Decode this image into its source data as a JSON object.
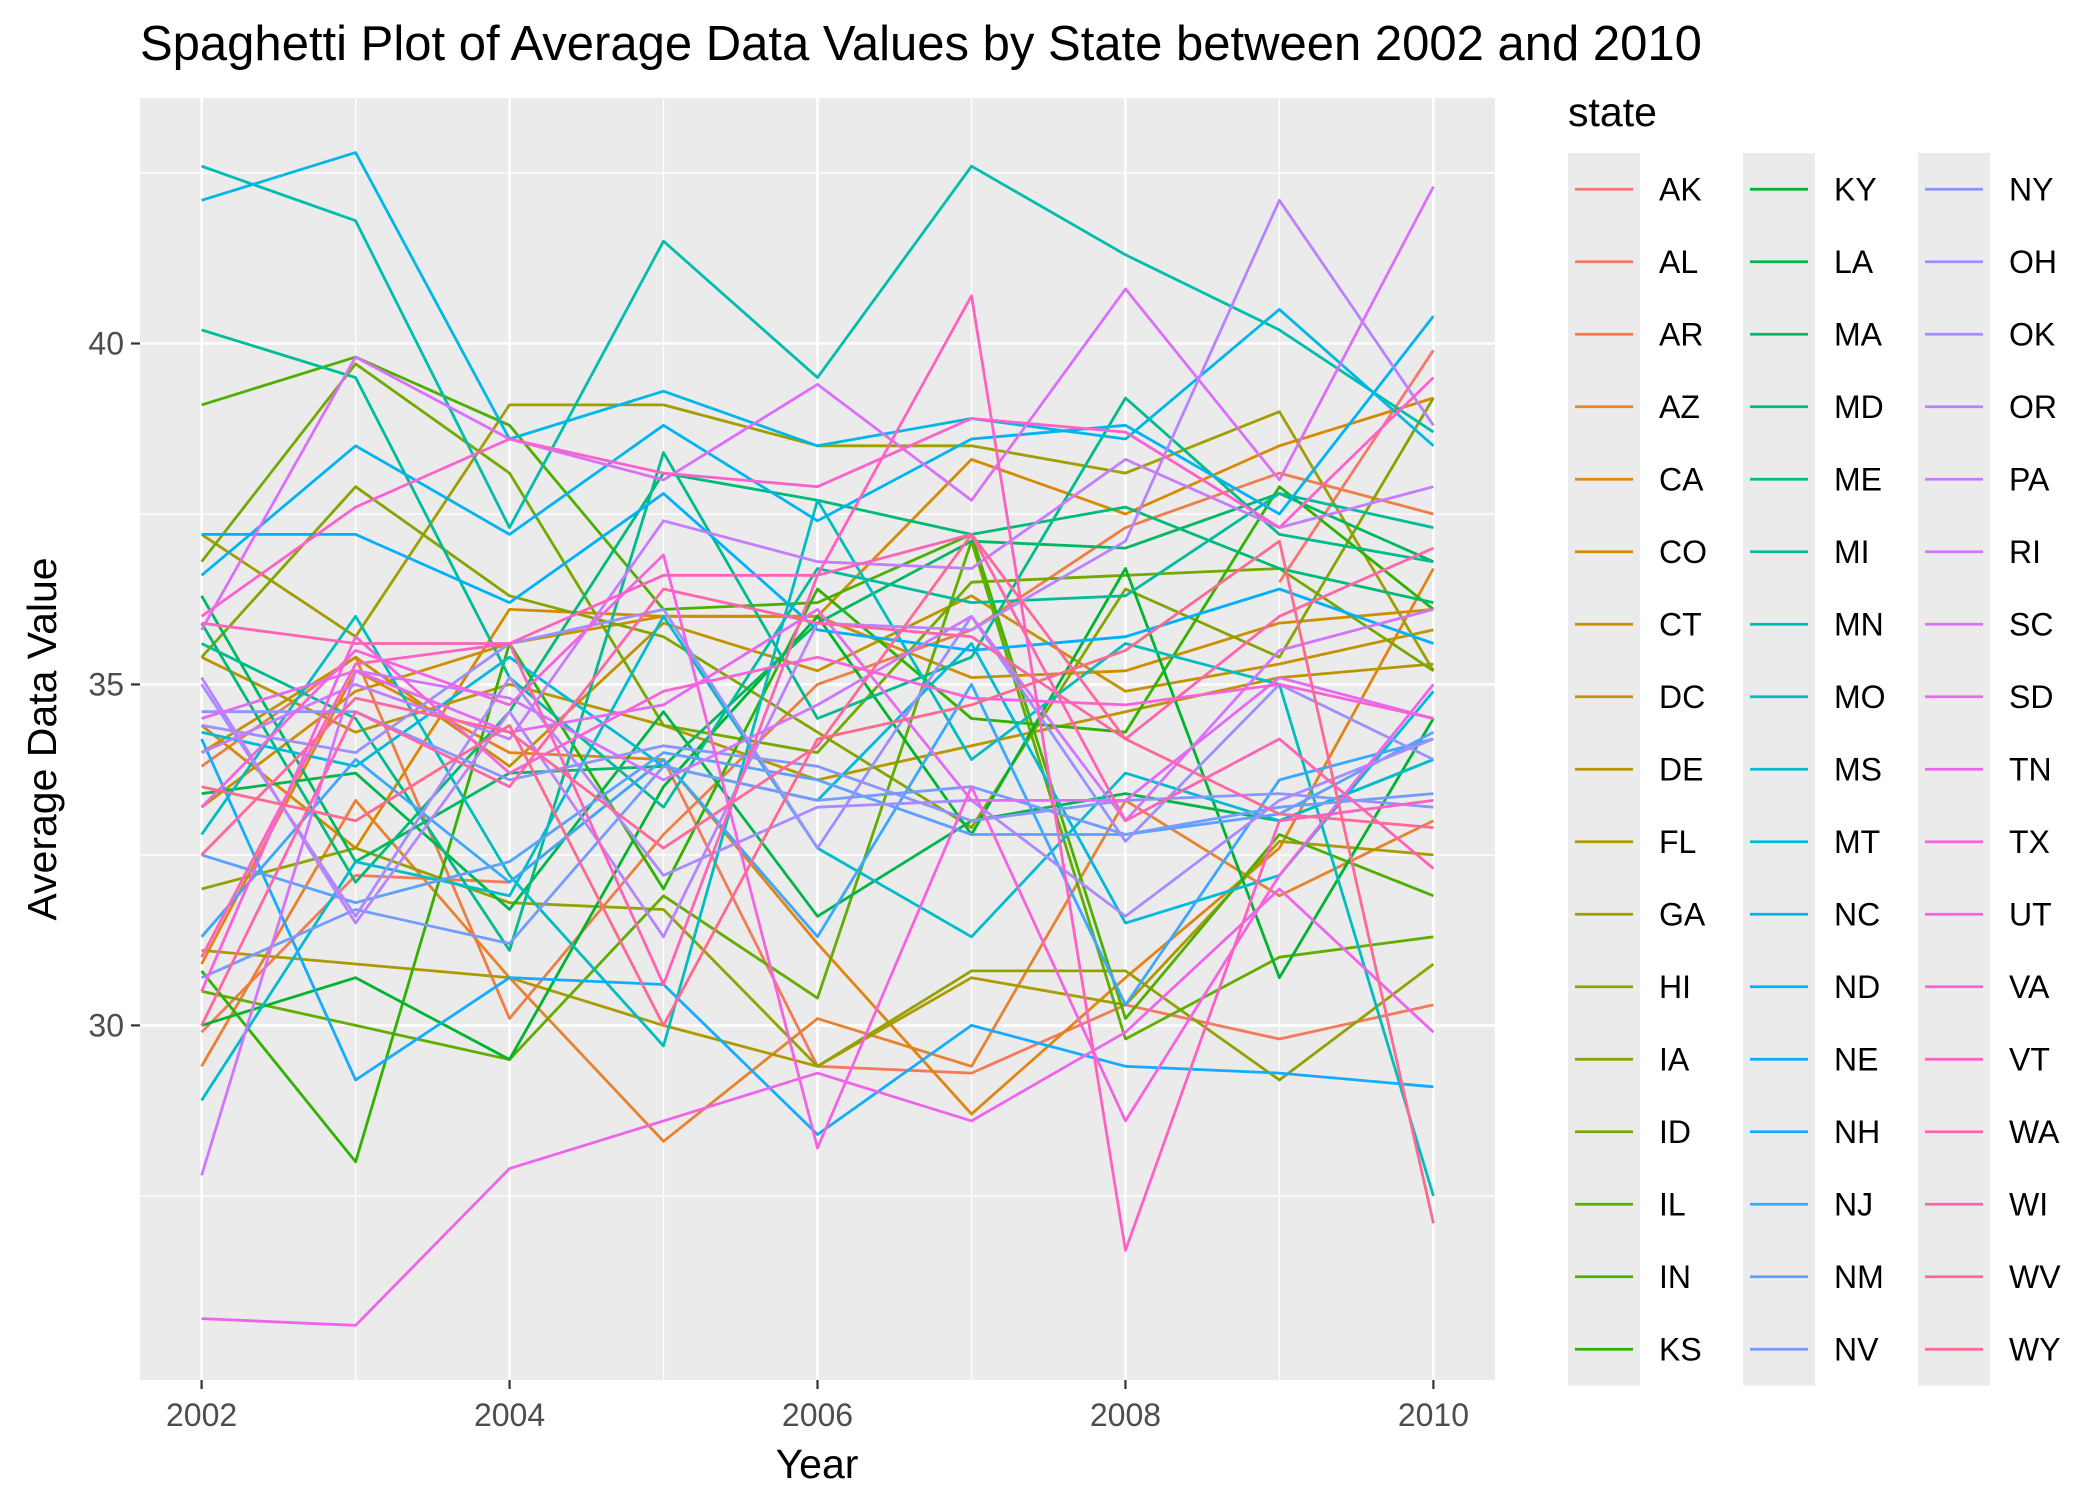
{
  "chart_data": {
    "type": "line",
    "title": "Spaghetti Plot of Average Data Values by State between 2002 and 2010",
    "xlabel": "Year",
    "ylabel": "Average Data Value",
    "x": [
      2002,
      2003,
      2004,
      2005,
      2006,
      2007,
      2008,
      2009,
      2010
    ],
    "xticks": [
      "2002",
      "2004",
      "2006",
      "2008",
      "2010"
    ],
    "yticks": [
      "30",
      "35",
      "40"
    ],
    "xlim": [
      2001.6,
      2010.4
    ],
    "ylim": [
      24.8,
      43.6
    ],
    "grid": true,
    "legend": {
      "title": "state",
      "position": "right",
      "columns": 3
    },
    "series": [
      {
        "name": "AK",
        "color": "#F8766D",
        "values": [
          null,
          null,
          null,
          null,
          null,
          null,
          null,
          36.5,
          39.9
        ]
      },
      {
        "name": "AL",
        "color": "#F47A5B",
        "values": [
          29.9,
          32.2,
          32.1,
          33.9,
          29.4,
          29.3,
          30.3,
          29.8,
          30.3
        ]
      },
      {
        "name": "AR",
        "color": "#EE7E48",
        "values": [
          33.8,
          35.4,
          30.1,
          32.8,
          35.0,
          35.8,
          37.3,
          38.1,
          37.5
        ]
      },
      {
        "name": "AZ",
        "color": "#E7822F",
        "values": [
          29.4,
          33.3,
          30.7,
          28.3,
          30.1,
          29.4,
          33.3,
          31.9,
          33.0
        ]
      },
      {
        "name": "CA",
        "color": "#E08513",
        "values": [
          30.9,
          35.2,
          34.0,
          33.9,
          31.2,
          28.7,
          30.7,
          32.6,
          36.7
        ]
      },
      {
        "name": "CO",
        "color": "#D78A00",
        "values": [
          34.4,
          32.6,
          36.1,
          36.0,
          36.0,
          38.3,
          37.5,
          38.5,
          39.2
        ]
      },
      {
        "name": "CT",
        "color": "#CE8E00",
        "values": [
          33.2,
          34.9,
          35.6,
          36.0,
          36.0,
          35.1,
          35.2,
          35.9,
          36.1
        ]
      },
      {
        "name": "DC",
        "color": "#C49200",
        "values": [
          34.0,
          35.4,
          33.8,
          35.9,
          35.2,
          36.3,
          34.9,
          35.3,
          35.8
        ]
      },
      {
        "name": "DE",
        "color": "#B99600",
        "values": [
          35.4,
          34.3,
          35.0,
          34.4,
          33.6,
          34.1,
          34.6,
          35.1,
          35.3
        ]
      },
      {
        "name": "FL",
        "color": "#AD9A00",
        "values": [
          31.1,
          30.9,
          30.7,
          30.0,
          29.4,
          30.7,
          30.3,
          32.7,
          32.5
        ]
      },
      {
        "name": "GA",
        "color": "#A19E00",
        "values": [
          37.2,
          35.7,
          39.1,
          39.1,
          38.5,
          38.5,
          38.1,
          39.0,
          35.2
        ]
      },
      {
        "name": "HI",
        "color": "#93A200",
        "values": [
          32.0,
          32.6,
          31.8,
          31.7,
          29.4,
          30.8,
          30.8,
          29.2,
          30.9
        ]
      },
      {
        "name": "IA",
        "color": "#84A500",
        "values": [
          35.4,
          37.9,
          36.3,
          35.7,
          34.3,
          32.9,
          36.4,
          35.4,
          39.2
        ]
      },
      {
        "name": "ID",
        "color": "#74A900",
        "values": [
          36.8,
          39.7,
          38.1,
          34.4,
          34.0,
          36.5,
          36.6,
          36.7,
          35.2
        ]
      },
      {
        "name": "IL",
        "color": "#63AC00",
        "values": [
          30.5,
          30.0,
          29.5,
          31.9,
          30.4,
          37.1,
          29.8,
          31.0,
          31.3
        ]
      },
      {
        "name": "IN",
        "color": "#4FAF00",
        "values": [
          39.1,
          39.8,
          38.8,
          36.1,
          36.2,
          37.2,
          30.1,
          32.8,
          31.9
        ]
      },
      {
        "name": "KS",
        "color": "#31B200",
        "values": [
          30.8,
          28.0,
          35.6,
          32.0,
          36.4,
          34.5,
          34.3,
          37.9,
          36.1
        ]
      },
      {
        "name": "KY",
        "color": "#00B42C",
        "values": [
          30.0,
          30.7,
          29.5,
          33.5,
          36.0,
          32.8,
          36.7,
          30.7,
          34.5
        ]
      },
      {
        "name": "LA",
        "color": "#00B64A",
        "values": [
          33.4,
          33.7,
          31.7,
          34.6,
          31.6,
          33.0,
          33.4,
          33.0,
          33.9
        ]
      },
      {
        "name": "MA",
        "color": "#00B863",
        "values": [
          36.3,
          32.4,
          33.7,
          33.8,
          35.9,
          37.1,
          37.0,
          37.8,
          36.8
        ]
      },
      {
        "name": "MD",
        "color": "#00BA78",
        "values": [
          35.9,
          32.1,
          34.6,
          38.1,
          37.7,
          37.2,
          37.6,
          36.7,
          36.2
        ]
      },
      {
        "name": "ME",
        "color": "#00BB8B",
        "values": [
          35.6,
          34.5,
          31.1,
          38.4,
          34.5,
          35.4,
          39.2,
          37.2,
          36.8
        ]
      },
      {
        "name": "MI",
        "color": "#00BC9D",
        "values": [
          40.2,
          39.5,
          35.1,
          33.2,
          36.7,
          36.2,
          36.3,
          37.8,
          37.3
        ]
      },
      {
        "name": "MN",
        "color": "#00BDAE",
        "values": [
          42.6,
          41.8,
          37.3,
          41.5,
          39.5,
          42.6,
          41.3,
          40.2,
          38.7
        ]
      },
      {
        "name": "MO",
        "color": "#00BDBE",
        "values": [
          32.8,
          36.0,
          32.2,
          29.7,
          37.7,
          33.9,
          35.6,
          35.0,
          27.5
        ]
      },
      {
        "name": "MS",
        "color": "#00BCCD",
        "values": [
          28.9,
          32.4,
          31.9,
          36.0,
          32.6,
          31.3,
          33.7,
          33.0,
          33.9
        ]
      },
      {
        "name": "MT",
        "color": "#00BADB",
        "values": [
          34.3,
          33.8,
          35.4,
          33.8,
          33.3,
          35.6,
          31.5,
          32.2,
          34.9
        ]
      },
      {
        "name": "NC",
        "color": "#00B7E8",
        "values": [
          42.1,
          42.8,
          38.6,
          39.3,
          38.5,
          38.9,
          38.6,
          40.5,
          38.5
        ]
      },
      {
        "name": "ND",
        "color": "#00B4F3",
        "values": [
          36.6,
          38.5,
          37.2,
          38.8,
          37.4,
          38.6,
          38.8,
          37.5,
          40.4
        ]
      },
      {
        "name": "NE",
        "color": "#00B0FC",
        "values": [
          37.2,
          37.2,
          36.2,
          37.8,
          35.8,
          35.5,
          35.7,
          36.4,
          35.6
        ]
      },
      {
        "name": "NH",
        "color": "#14ACFF",
        "values": [
          34.2,
          29.2,
          30.7,
          30.6,
          28.4,
          30.0,
          29.4,
          29.3,
          29.1
        ]
      },
      {
        "name": "NJ",
        "color": "#3CA7FF",
        "values": [
          31.3,
          33.9,
          32.1,
          33.9,
          31.3,
          35.0,
          30.3,
          33.6,
          34.2
        ]
      },
      {
        "name": "NM",
        "color": "#5BA1FF",
        "values": [
          32.5,
          31.8,
          32.4,
          34.0,
          33.6,
          32.8,
          32.8,
          33.1,
          34.3
        ]
      },
      {
        "name": "NV",
        "color": "#749CFF",
        "values": [
          30.7,
          31.7,
          31.2,
          33.8,
          33.3,
          33.5,
          32.8,
          33.2,
          33.4
        ]
      },
      {
        "name": "NY",
        "color": "#8996FF",
        "values": [
          34.6,
          34.6,
          33.6,
          34.1,
          33.8,
          33.0,
          33.3,
          33.4,
          33.2
        ]
      },
      {
        "name": "OH",
        "color": "#9B90FF",
        "values": [
          34.4,
          34.0,
          35.6,
          36.1,
          32.6,
          36.0,
          32.7,
          35.0,
          33.9
        ]
      },
      {
        "name": "OK",
        "color": "#AA8AFF",
        "values": [
          35.0,
          31.6,
          35.1,
          32.2,
          33.2,
          33.3,
          31.6,
          33.3,
          34.2
        ]
      },
      {
        "name": "OR",
        "color": "#B983FF",
        "values": [
          35.1,
          31.5,
          34.6,
          31.3,
          35.9,
          35.8,
          37.1,
          42.1,
          38.8
        ]
      },
      {
        "name": "PA",
        "color": "#C57CFF",
        "values": [
          34.0,
          35.0,
          34.2,
          37.4,
          36.8,
          36.7,
          38.3,
          37.3,
          37.9
        ]
      },
      {
        "name": "RI",
        "color": "#D175FF",
        "values": [
          27.8,
          35.2,
          34.8,
          33.6,
          34.7,
          36.0,
          33.0,
          35.5,
          36.1
        ]
      },
      {
        "name": "SC",
        "color": "#DC6FFA",
        "values": [
          35.8,
          39.8,
          38.6,
          38.0,
          39.4,
          37.7,
          40.8,
          38.0,
          42.3
        ]
      },
      {
        "name": "SD",
        "color": "#E56AF3",
        "values": [
          34.5,
          35.2,
          34.3,
          34.7,
          36.1,
          33.3,
          33.3,
          35.1,
          34.5
        ]
      },
      {
        "name": "TN",
        "color": "#EE65EB",
        "values": [
          25.7,
          25.6,
          27.9,
          28.6,
          29.3,
          28.6,
          29.9,
          32.0,
          29.9
        ]
      },
      {
        "name": "TX",
        "color": "#F563E2",
        "values": [
          33.2,
          35.5,
          34.7,
          36.9,
          28.2,
          33.5,
          28.6,
          32.2,
          35.0
        ]
      },
      {
        "name": "UT",
        "color": "#FA62D9",
        "values": [
          30.5,
          35.7,
          33.7,
          34.9,
          35.4,
          34.8,
          34.7,
          35.0,
          34.5
        ]
      },
      {
        "name": "VA",
        "color": "#FD61CE",
        "values": [
          36.0,
          37.6,
          38.6,
          38.1,
          37.9,
          38.9,
          38.7,
          37.3,
          39.5
        ]
      },
      {
        "name": "VT",
        "color": "#FF61C3",
        "values": [
          31.0,
          35.3,
          35.6,
          36.6,
          36.6,
          40.7,
          26.7,
          33.0,
          33.3
        ]
      },
      {
        "name": "WA",
        "color": "#FF63B6",
        "values": [
          35.9,
          35.6,
          35.6,
          30.6,
          36.6,
          37.2,
          33.0,
          34.2,
          32.3
        ]
      },
      {
        "name": "WI",
        "color": "#FF65AA",
        "values": [
          30.0,
          34.6,
          33.5,
          36.4,
          35.9,
          35.7,
          34.2,
          36.0,
          37.0
        ]
      },
      {
        "name": "WV",
        "color": "#FF679D",
        "values": [
          32.5,
          34.8,
          34.3,
          32.6,
          34.1,
          37.2,
          34.2,
          33.1,
          32.9
        ]
      },
      {
        "name": "WY",
        "color": "#FC6B8F",
        "values": [
          33.5,
          33.0,
          34.4,
          30.0,
          34.2,
          34.7,
          35.5,
          37.1,
          27.1
        ]
      }
    ]
  }
}
